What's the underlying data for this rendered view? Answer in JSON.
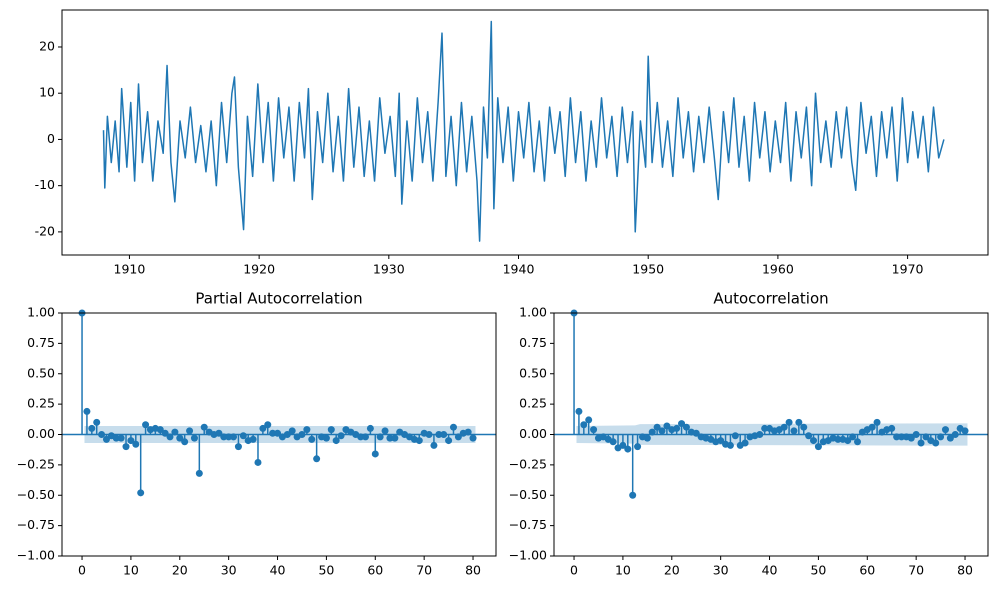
{
  "chart_data": [
    {
      "type": "line",
      "color": "#1f77b4",
      "x": [
        1908.0,
        1908.1,
        1908.3,
        1908.6,
        1908.9,
        1909.2,
        1909.4,
        1909.8,
        1910.1,
        1910.4,
        1910.7,
        1911.0,
        1911.4,
        1911.8,
        1912.2,
        1912.6,
        1912.9,
        1913.2,
        1913.5,
        1913.9,
        1914.3,
        1914.7,
        1915.1,
        1915.5,
        1915.9,
        1916.3,
        1916.7,
        1917.1,
        1917.5,
        1917.9,
        1918.1,
        1918.4,
        1918.8,
        1919.1,
        1919.5,
        1919.9,
        1920.3,
        1920.7,
        1921.1,
        1921.5,
        1921.9,
        1922.3,
        1922.7,
        1923.1,
        1923.5,
        1923.8,
        1924.1,
        1924.5,
        1924.9,
        1925.3,
        1925.7,
        1926.1,
        1926.5,
        1926.9,
        1927.3,
        1927.7,
        1928.1,
        1928.5,
        1928.9,
        1929.3,
        1929.7,
        1930.1,
        1930.5,
        1930.8,
        1931.0,
        1931.4,
        1931.8,
        1932.2,
        1932.6,
        1933.0,
        1933.4,
        1933.8,
        1934.1,
        1934.4,
        1934.8,
        1935.2,
        1935.6,
        1936.0,
        1936.4,
        1936.8,
        1937.0,
        1937.3,
        1937.6,
        1937.9,
        1938.1,
        1938.4,
        1938.8,
        1939.2,
        1939.6,
        1940.0,
        1940.4,
        1940.8,
        1941.2,
        1941.6,
        1942.0,
        1942.4,
        1942.8,
        1943.2,
        1943.6,
        1944.0,
        1944.4,
        1944.8,
        1945.2,
        1945.6,
        1946.0,
        1946.4,
        1946.8,
        1947.2,
        1947.6,
        1948.0,
        1948.4,
        1948.8,
        1949.0,
        1949.4,
        1949.8,
        1950.0,
        1950.3,
        1950.7,
        1951.1,
        1951.5,
        1951.9,
        1952.3,
        1952.7,
        1953.1,
        1953.5,
        1953.9,
        1954.3,
        1954.7,
        1955.1,
        1955.4,
        1955.8,
        1956.2,
        1956.6,
        1957.0,
        1957.4,
        1957.8,
        1958.2,
        1958.6,
        1959.0,
        1959.4,
        1959.8,
        1960.2,
        1960.6,
        1961.0,
        1961.4,
        1961.8,
        1962.2,
        1962.6,
        1962.9,
        1963.3,
        1963.7,
        1964.1,
        1964.5,
        1964.9,
        1965.3,
        1965.7,
        1966.0,
        1966.4,
        1966.8,
        1967.2,
        1967.6,
        1968.0,
        1968.4,
        1968.8,
        1969.2,
        1969.6,
        1970.0,
        1970.4,
        1970.8,
        1971.2,
        1971.6,
        1972.0,
        1972.4,
        1972.8
      ],
      "values": [
        2,
        -10.5,
        5,
        -5,
        4,
        -7,
        11,
        -6,
        8,
        -9,
        12,
        -5,
        6,
        -9,
        4,
        -3,
        16,
        -5,
        -13.5,
        4,
        -4,
        7,
        -5,
        3,
        -7,
        4,
        -10,
        8,
        -5,
        10,
        13.5,
        -6,
        -19.5,
        5,
        -8,
        12,
        -5,
        8,
        -9,
        9,
        -4,
        7,
        -9,
        8,
        -4,
        11,
        -13,
        6,
        -5,
        10,
        -7,
        5,
        -9,
        11,
        -6,
        7,
        -8,
        4,
        -9,
        9,
        -3,
        5,
        -8,
        10,
        -14,
        4,
        -9,
        9,
        -5,
        6,
        -9,
        8,
        23,
        -8,
        5,
        -10,
        8,
        -7,
        5,
        -9,
        -22,
        7,
        -4,
        25.5,
        -15,
        9,
        -5,
        7,
        -9,
        6,
        -4,
        8,
        -7,
        4,
        -9,
        7,
        -3,
        6,
        -8,
        9,
        -5,
        6,
        -9,
        4,
        -6,
        9,
        -4,
        5,
        -8,
        7,
        -5,
        6,
        -20,
        4,
        -6,
        18,
        -5,
        8,
        -6,
        4,
        -8,
        9,
        -4,
        6,
        -7,
        5,
        -5,
        7,
        -4,
        -13,
        6,
        -5,
        9,
        -6,
        5,
        -9,
        8,
        -4,
        6,
        -7,
        4,
        -5,
        8,
        -9,
        6,
        -4,
        7,
        -10,
        10,
        -5,
        4,
        -6,
        6,
        -4,
        7,
        -5,
        -11,
        8,
        -3,
        5,
        -8,
        6,
        -4,
        7,
        -9,
        9,
        -5,
        6,
        -4,
        5,
        -7,
        7,
        -4,
        0
      ],
      "xlim": [
        1904.8,
        1976.2
      ],
      "ylim": [
        -25,
        28
      ],
      "xticks": [
        1910,
        1920,
        1930,
        1940,
        1950,
        1960,
        1970
      ],
      "yticks": [
        -20,
        -10,
        0,
        10,
        20
      ]
    },
    {
      "type": "stem",
      "title": "Partial Autocorrelation",
      "color": "#1f77b4",
      "x": [
        0,
        1,
        2,
        3,
        4,
        5,
        6,
        7,
        8,
        9,
        10,
        11,
        12,
        13,
        14,
        15,
        16,
        17,
        18,
        19,
        20,
        21,
        22,
        23,
        24,
        25,
        26,
        27,
        28,
        29,
        30,
        31,
        32,
        33,
        34,
        35,
        36,
        37,
        38,
        39,
        40,
        41,
        42,
        43,
        44,
        45,
        46,
        47,
        48,
        49,
        50,
        51,
        52,
        53,
        54,
        55,
        56,
        57,
        58,
        59,
        60,
        61,
        62,
        63,
        64,
        65,
        66,
        67,
        68,
        69,
        70,
        71,
        72,
        73,
        74,
        75,
        76,
        77,
        78,
        79,
        80
      ],
      "values": [
        1,
        0.19,
        0.05,
        0.1,
        0.0,
        -0.04,
        -0.01,
        -0.03,
        -0.03,
        -0.1,
        -0.05,
        -0.08,
        -0.48,
        0.08,
        0.04,
        0.05,
        0.04,
        0.01,
        -0.02,
        0.02,
        -0.03,
        -0.06,
        0.03,
        -0.03,
        -0.32,
        0.06,
        0.02,
        0.0,
        0.01,
        -0.02,
        -0.02,
        -0.02,
        -0.1,
        -0.01,
        -0.05,
        -0.04,
        -0.23,
        0.05,
        0.08,
        0.01,
        0.01,
        -0.02,
        0.0,
        0.03,
        -0.02,
        0.0,
        0.04,
        -0.04,
        -0.2,
        -0.02,
        -0.03,
        0.04,
        -0.05,
        -0.01,
        0.04,
        0.02,
        0.0,
        -0.02,
        -0.02,
        0.05,
        -0.16,
        -0.02,
        0.03,
        -0.03,
        -0.03,
        0.02,
        0.0,
        -0.02,
        -0.04,
        -0.05,
        0.01,
        0.0,
        -0.09,
        0.0,
        0.0,
        -0.05,
        0.06,
        -0.02,
        0.01,
        0.02,
        -0.03
      ],
      "band_x": [
        0.5,
        80.5
      ],
      "band": [
        0.07,
        0.07
      ],
      "xlim": [
        -4.1,
        84.7
      ],
      "ylim": [
        -1,
        1
      ],
      "xticks": [
        0,
        10,
        20,
        30,
        40,
        50,
        60,
        70,
        80
      ],
      "yticks": [
        {
          "value": -1,
          "label": "−1.00"
        },
        {
          "value": -0.75,
          "label": "−0.75"
        },
        {
          "value": -0.5,
          "label": "−0.50"
        },
        {
          "value": -0.25,
          "label": "−0.25"
        },
        {
          "value": 0,
          "label": "0.00"
        },
        {
          "value": 0.25,
          "label": "0.25"
        },
        {
          "value": 0.5,
          "label": "0.50"
        },
        {
          "value": 0.75,
          "label": "0.75"
        },
        {
          "value": 1,
          "label": "1.00"
        }
      ]
    },
    {
      "type": "stem",
      "title": "Autocorrelation",
      "color": "#1f77b4",
      "x": [
        0,
        1,
        2,
        3,
        4,
        5,
        6,
        7,
        8,
        9,
        10,
        11,
        12,
        13,
        14,
        15,
        16,
        17,
        18,
        19,
        20,
        21,
        22,
        23,
        24,
        25,
        26,
        27,
        28,
        29,
        30,
        31,
        32,
        33,
        34,
        35,
        36,
        37,
        38,
        39,
        40,
        41,
        42,
        43,
        44,
        45,
        46,
        47,
        48,
        49,
        50,
        51,
        52,
        53,
        54,
        55,
        56,
        57,
        58,
        59,
        60,
        61,
        62,
        63,
        64,
        65,
        66,
        67,
        68,
        69,
        70,
        71,
        72,
        73,
        74,
        75,
        76,
        77,
        78,
        79,
        80
      ],
      "values": [
        1,
        0.19,
        0.08,
        0.12,
        0.04,
        -0.03,
        -0.02,
        -0.04,
        -0.06,
        -0.11,
        -0.09,
        -0.12,
        -0.5,
        -0.1,
        -0.02,
        -0.03,
        0.02,
        0.06,
        0.03,
        0.07,
        0.04,
        0.05,
        0.09,
        0.06,
        0.02,
        0.01,
        -0.02,
        -0.03,
        -0.04,
        -0.06,
        -0.05,
        -0.08,
        -0.09,
        -0.01,
        -0.09,
        -0.07,
        -0.02,
        -0.01,
        0.0,
        0.05,
        0.05,
        0.03,
        0.04,
        0.06,
        0.1,
        0.03,
        0.1,
        0.06,
        -0.01,
        -0.05,
        -0.1,
        -0.06,
        -0.05,
        -0.03,
        -0.04,
        -0.04,
        -0.05,
        -0.02,
        -0.06,
        0.02,
        0.04,
        0.06,
        0.1,
        0.02,
        0.04,
        0.05,
        -0.02,
        -0.02,
        -0.02,
        -0.03,
        0.0,
        -0.07,
        -0.02,
        -0.05,
        -0.07,
        -0.02,
        0.04,
        -0.03,
        0.0,
        0.05,
        0.03
      ],
      "band_x": [
        0.5,
        12.5,
        13.5,
        80.5
      ],
      "band": [
        0.07,
        0.075,
        0.085,
        0.092
      ],
      "xlim": [
        -4.1,
        84.7
      ],
      "ylim": [
        -1,
        1
      ],
      "xticks": [
        0,
        10,
        20,
        30,
        40,
        50,
        60,
        70,
        80
      ],
      "yticks": [
        {
          "value": -1,
          "label": "−1.00"
        },
        {
          "value": -0.75,
          "label": "−0.75"
        },
        {
          "value": -0.5,
          "label": "−0.50"
        },
        {
          "value": -0.25,
          "label": "−0.25"
        },
        {
          "value": 0,
          "label": "0.00"
        },
        {
          "value": 0.25,
          "label": "0.25"
        },
        {
          "value": 0.5,
          "label": "0.50"
        },
        {
          "value": 0.75,
          "label": "0.75"
        },
        {
          "value": 1,
          "label": "1.00"
        }
      ]
    }
  ]
}
